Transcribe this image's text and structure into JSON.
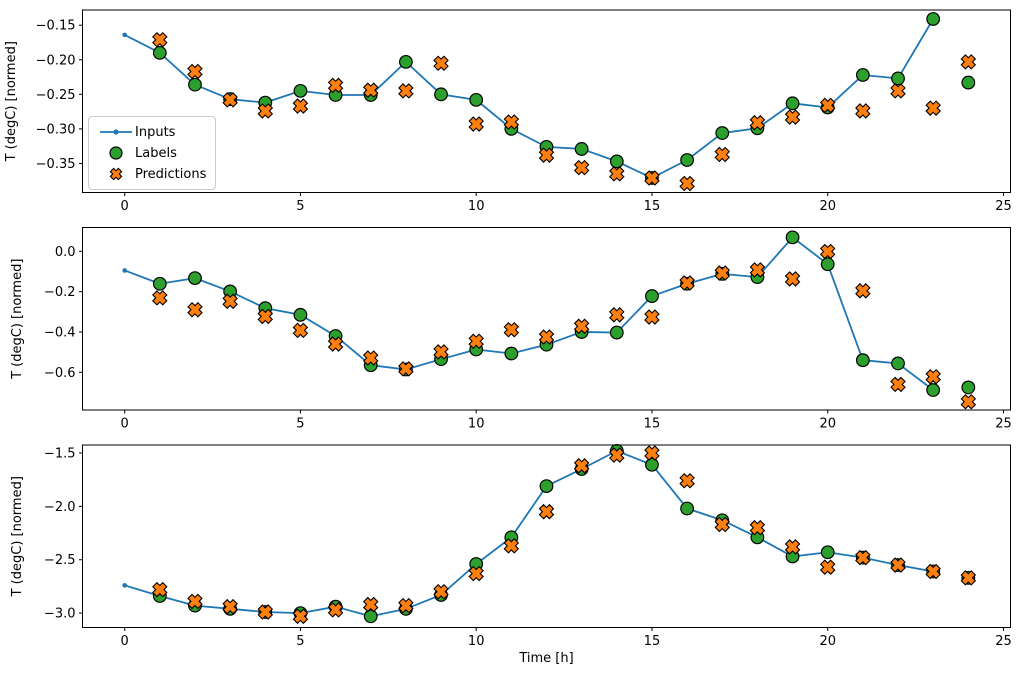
{
  "figure": {
    "xlabel": "Time [h]",
    "ylabel": "T (degC) [normed]",
    "background": "#ffffff",
    "text_color": "#000000",
    "colors": {
      "inputs_line": "#1f77b4",
      "labels_marker": "#2ca02c",
      "predictions_marker": "#ff7f0e",
      "marker_edge": "#000000",
      "axis": "#000000",
      "legend_border": "#cccccc"
    },
    "legend": {
      "position": "left-center-of-top-subplot",
      "items": [
        {
          "label": "Inputs",
          "marker": "line-with-dot"
        },
        {
          "label": "Labels",
          "marker": "filled-circle"
        },
        {
          "label": "Predictions",
          "marker": "filled-x"
        }
      ]
    }
  },
  "chart_data": [
    {
      "type": "line",
      "title": "",
      "xlabel": "",
      "ylabel": "T (degC) [normed]",
      "xlim": [
        -1.2,
        25.2
      ],
      "ylim": [
        -0.392,
        -0.128
      ],
      "xticks": [
        0,
        5,
        10,
        15,
        20,
        25
      ],
      "xtick_labels": [
        "0",
        "5",
        "10",
        "15",
        "20",
        "25"
      ],
      "yticks": [
        -0.15,
        -0.2,
        -0.25,
        -0.3,
        -0.35
      ],
      "ytick_labels": [
        "−0.15",
        "−0.20",
        "−0.25",
        "−0.30",
        "−0.35"
      ],
      "grid": false,
      "legend": true,
      "series": [
        {
          "name": "Inputs",
          "type": "line",
          "marker": "dot",
          "x": [
            0,
            1,
            2,
            3,
            4,
            5,
            6,
            7,
            8,
            9,
            10,
            11,
            12,
            13,
            14,
            15,
            16,
            17,
            18,
            19,
            20,
            21,
            22,
            23
          ],
          "y": [
            -0.164,
            -0.19,
            -0.236,
            -0.257,
            -0.262,
            -0.245,
            -0.251,
            -0.251,
            -0.203,
            -0.25,
            -0.258,
            -0.3,
            -0.326,
            -0.329,
            -0.347,
            -0.371,
            -0.345,
            -0.306,
            -0.299,
            -0.263,
            -0.269,
            -0.222,
            -0.227,
            -0.141
          ]
        },
        {
          "name": "Labels",
          "type": "scatter",
          "marker": "circle",
          "x": [
            1,
            2,
            3,
            4,
            5,
            6,
            7,
            8,
            9,
            10,
            11,
            12,
            13,
            14,
            15,
            16,
            17,
            18,
            19,
            20,
            21,
            22,
            23,
            24
          ],
          "y": [
            -0.19,
            -0.236,
            -0.257,
            -0.262,
            -0.245,
            -0.251,
            -0.251,
            -0.203,
            -0.25,
            -0.258,
            -0.3,
            -0.326,
            -0.329,
            -0.347,
            -0.371,
            -0.345,
            -0.306,
            -0.299,
            -0.263,
            -0.269,
            -0.222,
            -0.227,
            -0.141,
            -0.233
          ]
        },
        {
          "name": "Predictions",
          "type": "scatter",
          "marker": "X",
          "x": [
            1,
            2,
            3,
            4,
            5,
            6,
            7,
            8,
            9,
            10,
            11,
            12,
            13,
            14,
            15,
            16,
            17,
            18,
            19,
            20,
            21,
            22,
            23,
            24
          ],
          "y": [
            -0.171,
            -0.217,
            -0.258,
            -0.274,
            -0.267,
            -0.237,
            -0.244,
            -0.245,
            -0.205,
            -0.293,
            -0.29,
            -0.338,
            -0.356,
            -0.365,
            -0.371,
            -0.379,
            -0.337,
            -0.291,
            -0.283,
            -0.266,
            -0.274,
            -0.245,
            -0.27,
            -0.203
          ]
        }
      ]
    },
    {
      "type": "line",
      "title": "",
      "xlabel": "",
      "ylabel": "T (degC) [normed]",
      "xlim": [
        -1.2,
        25.2
      ],
      "ylim": [
        -0.787,
        0.118
      ],
      "xticks": [
        0,
        5,
        10,
        15,
        20,
        25
      ],
      "xtick_labels": [
        "0",
        "5",
        "10",
        "15",
        "20",
        "25"
      ],
      "yticks": [
        0.0,
        -0.2,
        -0.4,
        -0.6
      ],
      "ytick_labels": [
        "0.0",
        "−0.2",
        "−0.4",
        "−0.6"
      ],
      "grid": false,
      "legend": false,
      "series": [
        {
          "name": "Inputs",
          "type": "line",
          "marker": "dot",
          "x": [
            0,
            1,
            2,
            3,
            4,
            5,
            6,
            7,
            8,
            9,
            10,
            11,
            12,
            13,
            14,
            15,
            16,
            17,
            18,
            19,
            20,
            21,
            22,
            23
          ],
          "y": [
            -0.095,
            -0.161,
            -0.133,
            -0.199,
            -0.282,
            -0.315,
            -0.42,
            -0.565,
            -0.586,
            -0.535,
            -0.487,
            -0.507,
            -0.463,
            -0.4,
            -0.403,
            -0.222,
            -0.161,
            -0.112,
            -0.128,
            0.069,
            -0.064,
            -0.54,
            -0.556,
            -0.688
          ]
        },
        {
          "name": "Labels",
          "type": "scatter",
          "marker": "circle",
          "x": [
            1,
            2,
            3,
            4,
            5,
            6,
            7,
            8,
            9,
            10,
            11,
            12,
            13,
            14,
            15,
            16,
            17,
            18,
            19,
            20,
            21,
            22,
            23,
            24
          ],
          "y": [
            -0.161,
            -0.133,
            -0.199,
            -0.282,
            -0.315,
            -0.42,
            -0.565,
            -0.586,
            -0.535,
            -0.487,
            -0.507,
            -0.463,
            -0.4,
            -0.403,
            -0.222,
            -0.161,
            -0.112,
            -0.128,
            0.069,
            -0.064,
            -0.54,
            -0.556,
            -0.688,
            -0.675
          ]
        },
        {
          "name": "Predictions",
          "type": "scatter",
          "marker": "X",
          "x": [
            1,
            2,
            3,
            4,
            5,
            6,
            7,
            8,
            9,
            10,
            11,
            12,
            13,
            14,
            15,
            16,
            17,
            18,
            19,
            20,
            21,
            22,
            23,
            24
          ],
          "y": [
            -0.231,
            -0.29,
            -0.248,
            -0.323,
            -0.392,
            -0.46,
            -0.529,
            -0.583,
            -0.499,
            -0.446,
            -0.389,
            -0.425,
            -0.372,
            -0.315,
            -0.326,
            -0.157,
            -0.108,
            -0.092,
            -0.137,
            -0.001,
            -0.196,
            -0.66,
            -0.622,
            -0.746
          ]
        }
      ]
    },
    {
      "type": "line",
      "title": "",
      "xlabel": "Time [h]",
      "ylabel": "T (degC) [normed]",
      "xlim": [
        -1.2,
        25.2
      ],
      "ylim": [
        -3.135,
        -1.425
      ],
      "xticks": [
        0,
        5,
        10,
        15,
        20,
        25
      ],
      "xtick_labels": [
        "0",
        "5",
        "10",
        "15",
        "20",
        "25"
      ],
      "yticks": [
        -1.5,
        -2.0,
        -2.5,
        -3.0
      ],
      "ytick_labels": [
        "−1.5",
        "−2.0",
        "−2.5",
        "−3.0"
      ],
      "grid": false,
      "legend": false,
      "series": [
        {
          "name": "Inputs",
          "type": "line",
          "marker": "dot",
          "x": [
            0,
            1,
            2,
            3,
            4,
            5,
            6,
            7,
            8,
            9,
            10,
            11,
            12,
            13,
            14,
            15,
            16,
            17,
            18,
            19,
            20,
            21,
            22,
            23
          ],
          "y": [
            -2.74,
            -2.84,
            -2.93,
            -2.96,
            -2.99,
            -3.0,
            -2.94,
            -3.03,
            -2.96,
            -2.83,
            -2.54,
            -2.29,
            -1.81,
            -1.65,
            -1.48,
            -1.61,
            -2.02,
            -2.13,
            -2.29,
            -2.47,
            -2.43,
            -2.48,
            -2.55,
            -2.61
          ]
        },
        {
          "name": "Labels",
          "type": "scatter",
          "marker": "circle",
          "x": [
            1,
            2,
            3,
            4,
            5,
            6,
            7,
            8,
            9,
            10,
            11,
            12,
            13,
            14,
            15,
            16,
            17,
            18,
            19,
            20,
            21,
            22,
            23,
            24
          ],
          "y": [
            -2.84,
            -2.93,
            -2.96,
            -2.99,
            -3.0,
            -2.94,
            -3.03,
            -2.96,
            -2.83,
            -2.54,
            -2.29,
            -1.81,
            -1.65,
            -1.48,
            -1.61,
            -2.02,
            -2.13,
            -2.29,
            -2.47,
            -2.43,
            -2.48,
            -2.55,
            -2.61,
            -2.67
          ]
        },
        {
          "name": "Predictions",
          "type": "scatter",
          "marker": "X",
          "x": [
            1,
            2,
            3,
            4,
            5,
            6,
            7,
            8,
            9,
            10,
            11,
            12,
            13,
            14,
            15,
            16,
            17,
            18,
            19,
            20,
            21,
            22,
            23,
            24
          ],
          "y": [
            -2.78,
            -2.89,
            -2.94,
            -2.99,
            -3.03,
            -2.97,
            -2.92,
            -2.93,
            -2.8,
            -2.63,
            -2.37,
            -2.05,
            -1.62,
            -1.52,
            -1.5,
            -1.76,
            -2.17,
            -2.2,
            -2.38,
            -2.57,
            -2.48,
            -2.55,
            -2.61,
            -2.67
          ]
        }
      ]
    }
  ]
}
